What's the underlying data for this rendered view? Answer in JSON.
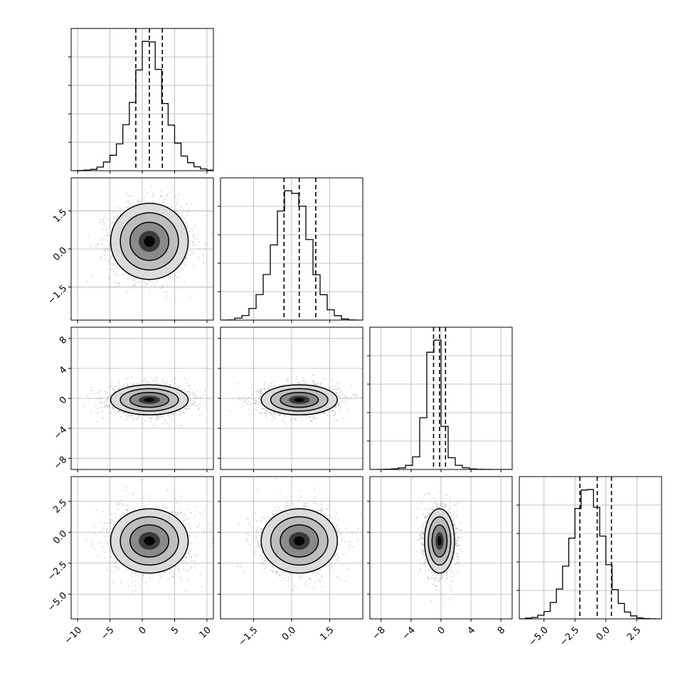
{
  "chart_data": {
    "type": "corner",
    "grid": true,
    "quantiles": [
      0.16,
      0.5,
      0.84
    ],
    "contour_levels": 3,
    "n_parameters": 4,
    "parameters": [
      {
        "range": [
          -11,
          11
        ],
        "ticks": [
          -10,
          -5,
          0,
          5,
          10
        ],
        "tick_labels": [
          "−10",
          "−5",
          "0",
          "5",
          "10"
        ],
        "quantile_values": [
          -1.0,
          1.1,
          3.1
        ],
        "hist_bin_edges": [
          -11,
          -10,
          -9,
          -8,
          -7,
          -6,
          -5,
          -4,
          -3,
          -2,
          -1,
          0,
          1,
          2,
          3,
          4,
          5,
          6,
          7,
          8,
          9,
          10,
          11
        ],
        "hist_counts": [
          0,
          2,
          5,
          11,
          29,
          69,
          123,
          214,
          367,
          544,
          802,
          1030,
          1026,
          807,
          535,
          363,
          220,
          117,
          64,
          31,
          14,
          4
        ],
        "center": 1.1,
        "spread": 3.0
      },
      {
        "range": [
          -2.8,
          2.8
        ],
        "ticks": [
          -1.5,
          0.0,
          1.5
        ],
        "tick_labels": [
          "−1.5",
          "0.0",
          "1.5"
        ],
        "quantile_values": [
          -0.3,
          0.3,
          0.95
        ],
        "hist_bin_edges": [
          -2.8,
          -2.52,
          -2.24,
          -1.96,
          -1.68,
          -1.4,
          -1.12,
          -0.84,
          -0.56,
          -0.28,
          0.0,
          0.28,
          0.56,
          0.84,
          1.12,
          1.4,
          1.68,
          1.96,
          2.24,
          2.52,
          2.8
        ],
        "hist_counts": [
          0,
          1,
          16,
          37,
          95,
          208,
          372,
          613,
          890,
          1055,
          1034,
          929,
          657,
          370,
          207,
          84,
          36,
          9,
          1,
          0
        ],
        "center": 0.3,
        "spread": 0.75
      },
      {
        "range": [
          -9.5,
          9.5
        ],
        "ticks": [
          -8,
          -4,
          0,
          4,
          8
        ],
        "tick_labels": [
          "−8",
          "−4",
          "0",
          "4",
          "8"
        ],
        "quantile_values": [
          -1.0,
          -0.2,
          0.6
        ],
        "hist_bin_edges": [
          -9.5,
          -8.55,
          -7.6,
          -6.65,
          -5.7,
          -4.75,
          -3.8,
          -2.85,
          -1.9,
          -0.95,
          0.0,
          0.95,
          1.9,
          2.85,
          3.8,
          4.75,
          5.7,
          6.65,
          7.6,
          8.55,
          9.5
        ],
        "hist_counts": [
          0,
          2,
          6,
          15,
          41,
          109,
          333,
          1365,
          3092,
          3411,
          1137,
          310,
          110,
          44,
          14,
          5,
          1,
          0,
          0,
          0
        ],
        "center": -0.2,
        "spread": 1.0
      },
      {
        "range": [
          -7.0,
          4.5
        ],
        "ticks": [
          -5.0,
          -2.5,
          0.0,
          2.5
        ],
        "tick_labels": [
          "−5.0",
          "−2.5",
          "0.0",
          "2.5"
        ],
        "quantile_values": [
          -2.1,
          -0.7,
          0.45
        ],
        "hist_bin_edges": [
          -7.0,
          -6.5,
          -6.0,
          -5.5,
          -5.0,
          -4.5,
          -4.0,
          -3.5,
          -3.0,
          -2.5,
          -2.0,
          -1.5,
          -1.0,
          -0.5,
          0.0,
          0.5,
          1.0,
          1.5,
          2.0,
          2.5,
          3.0,
          3.5,
          4.0,
          4.5
        ],
        "hist_counts": [
          1,
          6,
          13,
          33,
          67,
          149,
          271,
          479,
          733,
          1003,
          1170,
          1175,
          1014,
          752,
          492,
          266,
          140,
          62,
          27,
          9,
          3,
          1,
          0
        ],
        "center": -0.7,
        "spread": 1.3
      }
    ]
  }
}
